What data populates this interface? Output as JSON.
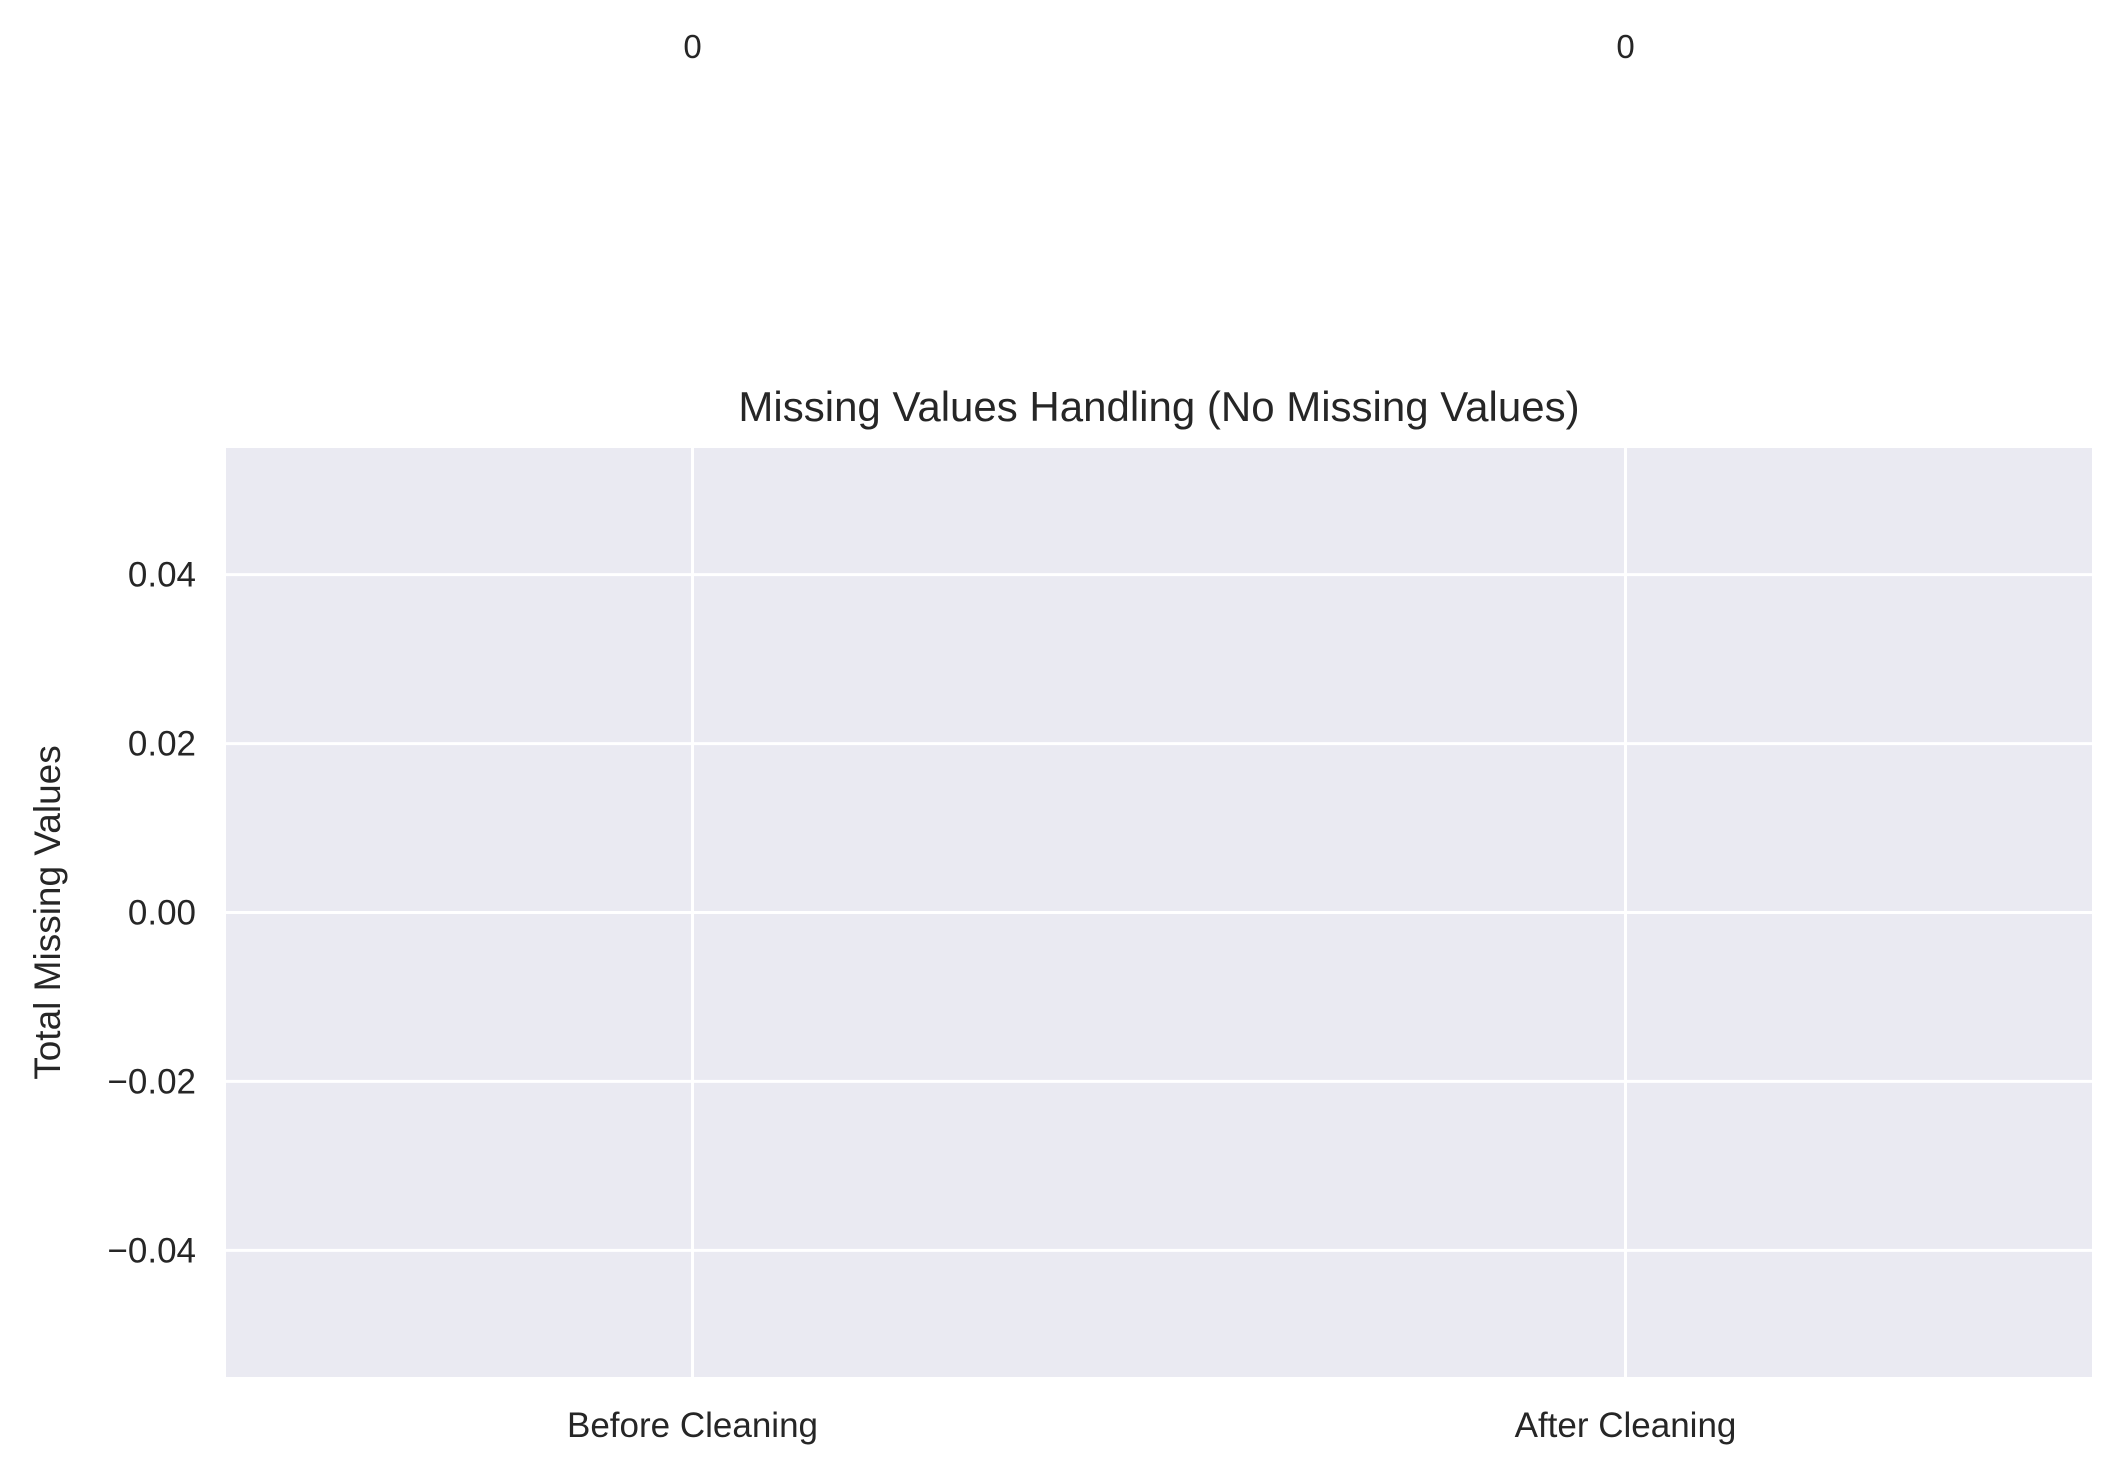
{
  "chart_data": {
    "type": "bar",
    "title": "Missing Values Handling (No Missing Values)",
    "xlabel": "",
    "ylabel": "Total Missing Values",
    "categories": [
      "Before Cleaning",
      "After Cleaning"
    ],
    "values": [
      0,
      0
    ],
    "data_labels": [
      "0",
      "0"
    ],
    "ylim": [
      -0.055,
      0.055
    ],
    "yticks": [
      0.04,
      0.02,
      0.0,
      -0.02,
      -0.04
    ],
    "ytick_labels": [
      "0.04",
      "0.02",
      "0.00",
      "−0.02",
      "−0.04"
    ],
    "grid": true,
    "legend": "none",
    "colors": {
      "plot_background": "#EAEAF2",
      "grid": "#FFFFFF",
      "text": "#262626",
      "bar": "#4C72B0"
    }
  }
}
